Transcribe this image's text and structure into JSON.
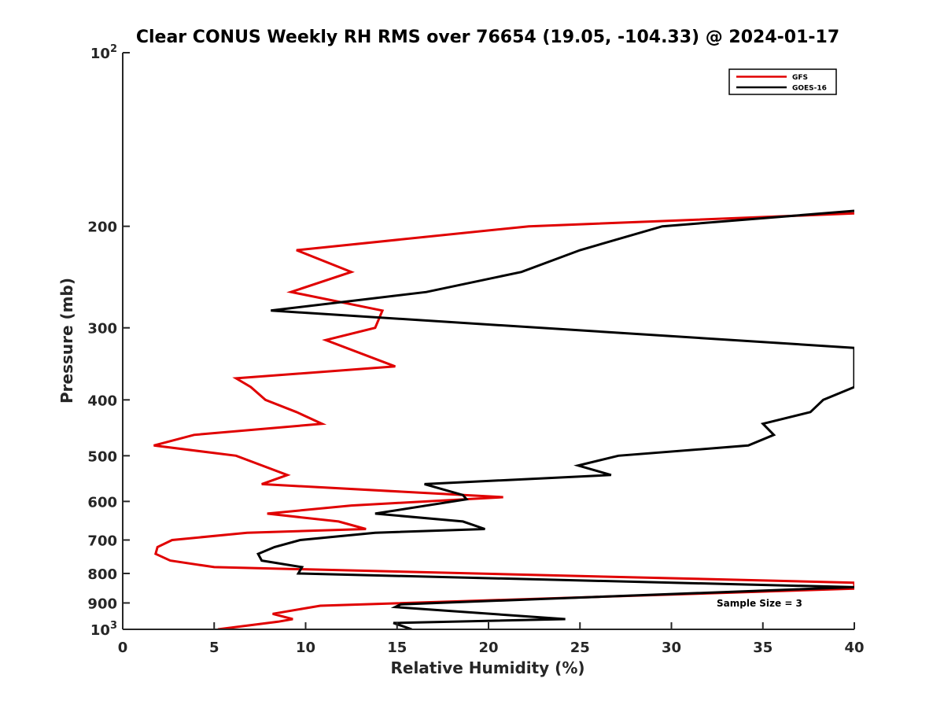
{
  "chart_data": {
    "type": "line",
    "title": "Clear CONUS Weekly RH RMS over 76654 (19.05, -104.33) @ 2024-01-17",
    "xlabel": "Relative Humidity (%)",
    "ylabel": "Pressure (mb)",
    "xlim": [
      0,
      40
    ],
    "ylim": [
      100,
      1000
    ],
    "y_scale": "log",
    "y_reversed": true,
    "x_ticks": [
      "0",
      "5",
      "10",
      "15",
      "20",
      "25",
      "30",
      "35",
      "40"
    ],
    "y_ticks": [
      "200",
      "300",
      "400",
      "500",
      "600",
      "700",
      "800",
      "900"
    ],
    "y_tick_top": {
      "base": "10",
      "exp": "2"
    },
    "y_tick_bottom": {
      "base": "10",
      "exp": "3"
    },
    "grid": false,
    "legend_position": "top-right",
    "annotation": "Sample Size = 3",
    "series": [
      {
        "name": "GFS",
        "color": "#e00000",
        "points": [
          [
            40,
            190
          ],
          [
            22.2,
            200
          ],
          [
            9.5,
            220
          ],
          [
            12.5,
            240
          ],
          [
            9.2,
            260
          ],
          [
            14.2,
            280
          ],
          [
            13.8,
            300
          ],
          [
            11.1,
            315
          ],
          [
            14.9,
            350
          ],
          [
            6.2,
            367
          ],
          [
            7,
            380
          ],
          [
            7.8,
            400
          ],
          [
            9.5,
            420
          ],
          [
            10.9,
            440
          ],
          [
            3.9,
            460
          ],
          [
            1.7,
            480
          ],
          [
            6.2,
            500
          ],
          [
            9,
            540
          ],
          [
            7.6,
            560
          ],
          [
            20.8,
            590
          ],
          [
            12.5,
            610
          ],
          [
            7.9,
            630
          ],
          [
            11.8,
            650
          ],
          [
            13.3,
            670
          ],
          [
            6.8,
            680
          ],
          [
            2.7,
            700
          ],
          [
            1.9,
            720
          ],
          [
            1.8,
            740
          ],
          [
            2.6,
            760
          ],
          [
            5,
            780
          ],
          [
            40,
            830
          ],
          [
            40,
            850
          ],
          [
            10.8,
            910
          ],
          [
            8.2,
            940
          ],
          [
            9.3,
            960
          ],
          [
            8.5,
            970
          ],
          [
            5.2,
            1000
          ]
        ]
      },
      {
        "name": "GOES-16",
        "color": "#000000",
        "points": [
          [
            40,
            188
          ],
          [
            29.5,
            200
          ],
          [
            25,
            220
          ],
          [
            21.8,
            240
          ],
          [
            16.6,
            260
          ],
          [
            8.1,
            280
          ],
          [
            40,
            325
          ],
          [
            40,
            380
          ],
          [
            38.3,
            400
          ],
          [
            37.6,
            420
          ],
          [
            35,
            440
          ],
          [
            35.6,
            460
          ],
          [
            34.2,
            480
          ],
          [
            27.1,
            500
          ],
          [
            24.9,
            520
          ],
          [
            26.7,
            540
          ],
          [
            16.5,
            560
          ],
          [
            18.6,
            585
          ],
          [
            18.8,
            595
          ],
          [
            13.8,
            630
          ],
          [
            18.6,
            650
          ],
          [
            19.8,
            670
          ],
          [
            13.8,
            680
          ],
          [
            9.7,
            700
          ],
          [
            8.3,
            720
          ],
          [
            7.4,
            740
          ],
          [
            7.6,
            760
          ],
          [
            9.8,
            780
          ],
          [
            9.6,
            800
          ],
          [
            40,
            845
          ],
          [
            15.2,
            905
          ],
          [
            14.9,
            915
          ],
          [
            24.2,
            960
          ],
          [
            14.8,
            975
          ],
          [
            15.8,
            1000
          ]
        ]
      }
    ]
  }
}
